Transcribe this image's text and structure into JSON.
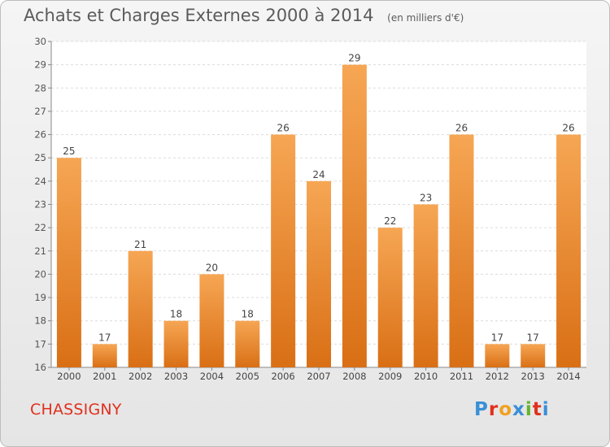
{
  "title": "Achats et Charges Externes 2000 à 2014",
  "subtitle": "(en milliers d'€)",
  "commune": "CHASSIGNY",
  "logo": {
    "letters": [
      "P",
      "r",
      "o",
      "x",
      "i",
      "t",
      "i"
    ],
    "colors": [
      "#3a8fd6",
      "#e0301e",
      "#f0a020",
      "#3a8fd6",
      "#66b32e",
      "#e0301e",
      "#3a8fd6"
    ]
  },
  "colors": {
    "bar_top": "#f6a654",
    "bar_bottom": "#d96f15",
    "text": "#5b5b5b",
    "brand": "#e0301e"
  },
  "chart_data": {
    "type": "bar",
    "title": "Achats et Charges Externes 2000 à 2014",
    "subtitle": "(en milliers d'€)",
    "categories": [
      "2000",
      "2001",
      "2002",
      "2003",
      "2004",
      "2005",
      "2006",
      "2007",
      "2008",
      "2009",
      "2010",
      "2011",
      "2012",
      "2013",
      "2014"
    ],
    "values": [
      25,
      17,
      21,
      18,
      20,
      18,
      26,
      24,
      29,
      22,
      23,
      26,
      17,
      17,
      26
    ],
    "yticks": [
      16,
      17,
      18,
      19,
      20,
      21,
      22,
      23,
      24,
      25,
      26,
      27,
      28,
      29,
      30
    ],
    "ylim": [
      16,
      30
    ],
    "grid": true,
    "xlabel": "",
    "ylabel": ""
  }
}
